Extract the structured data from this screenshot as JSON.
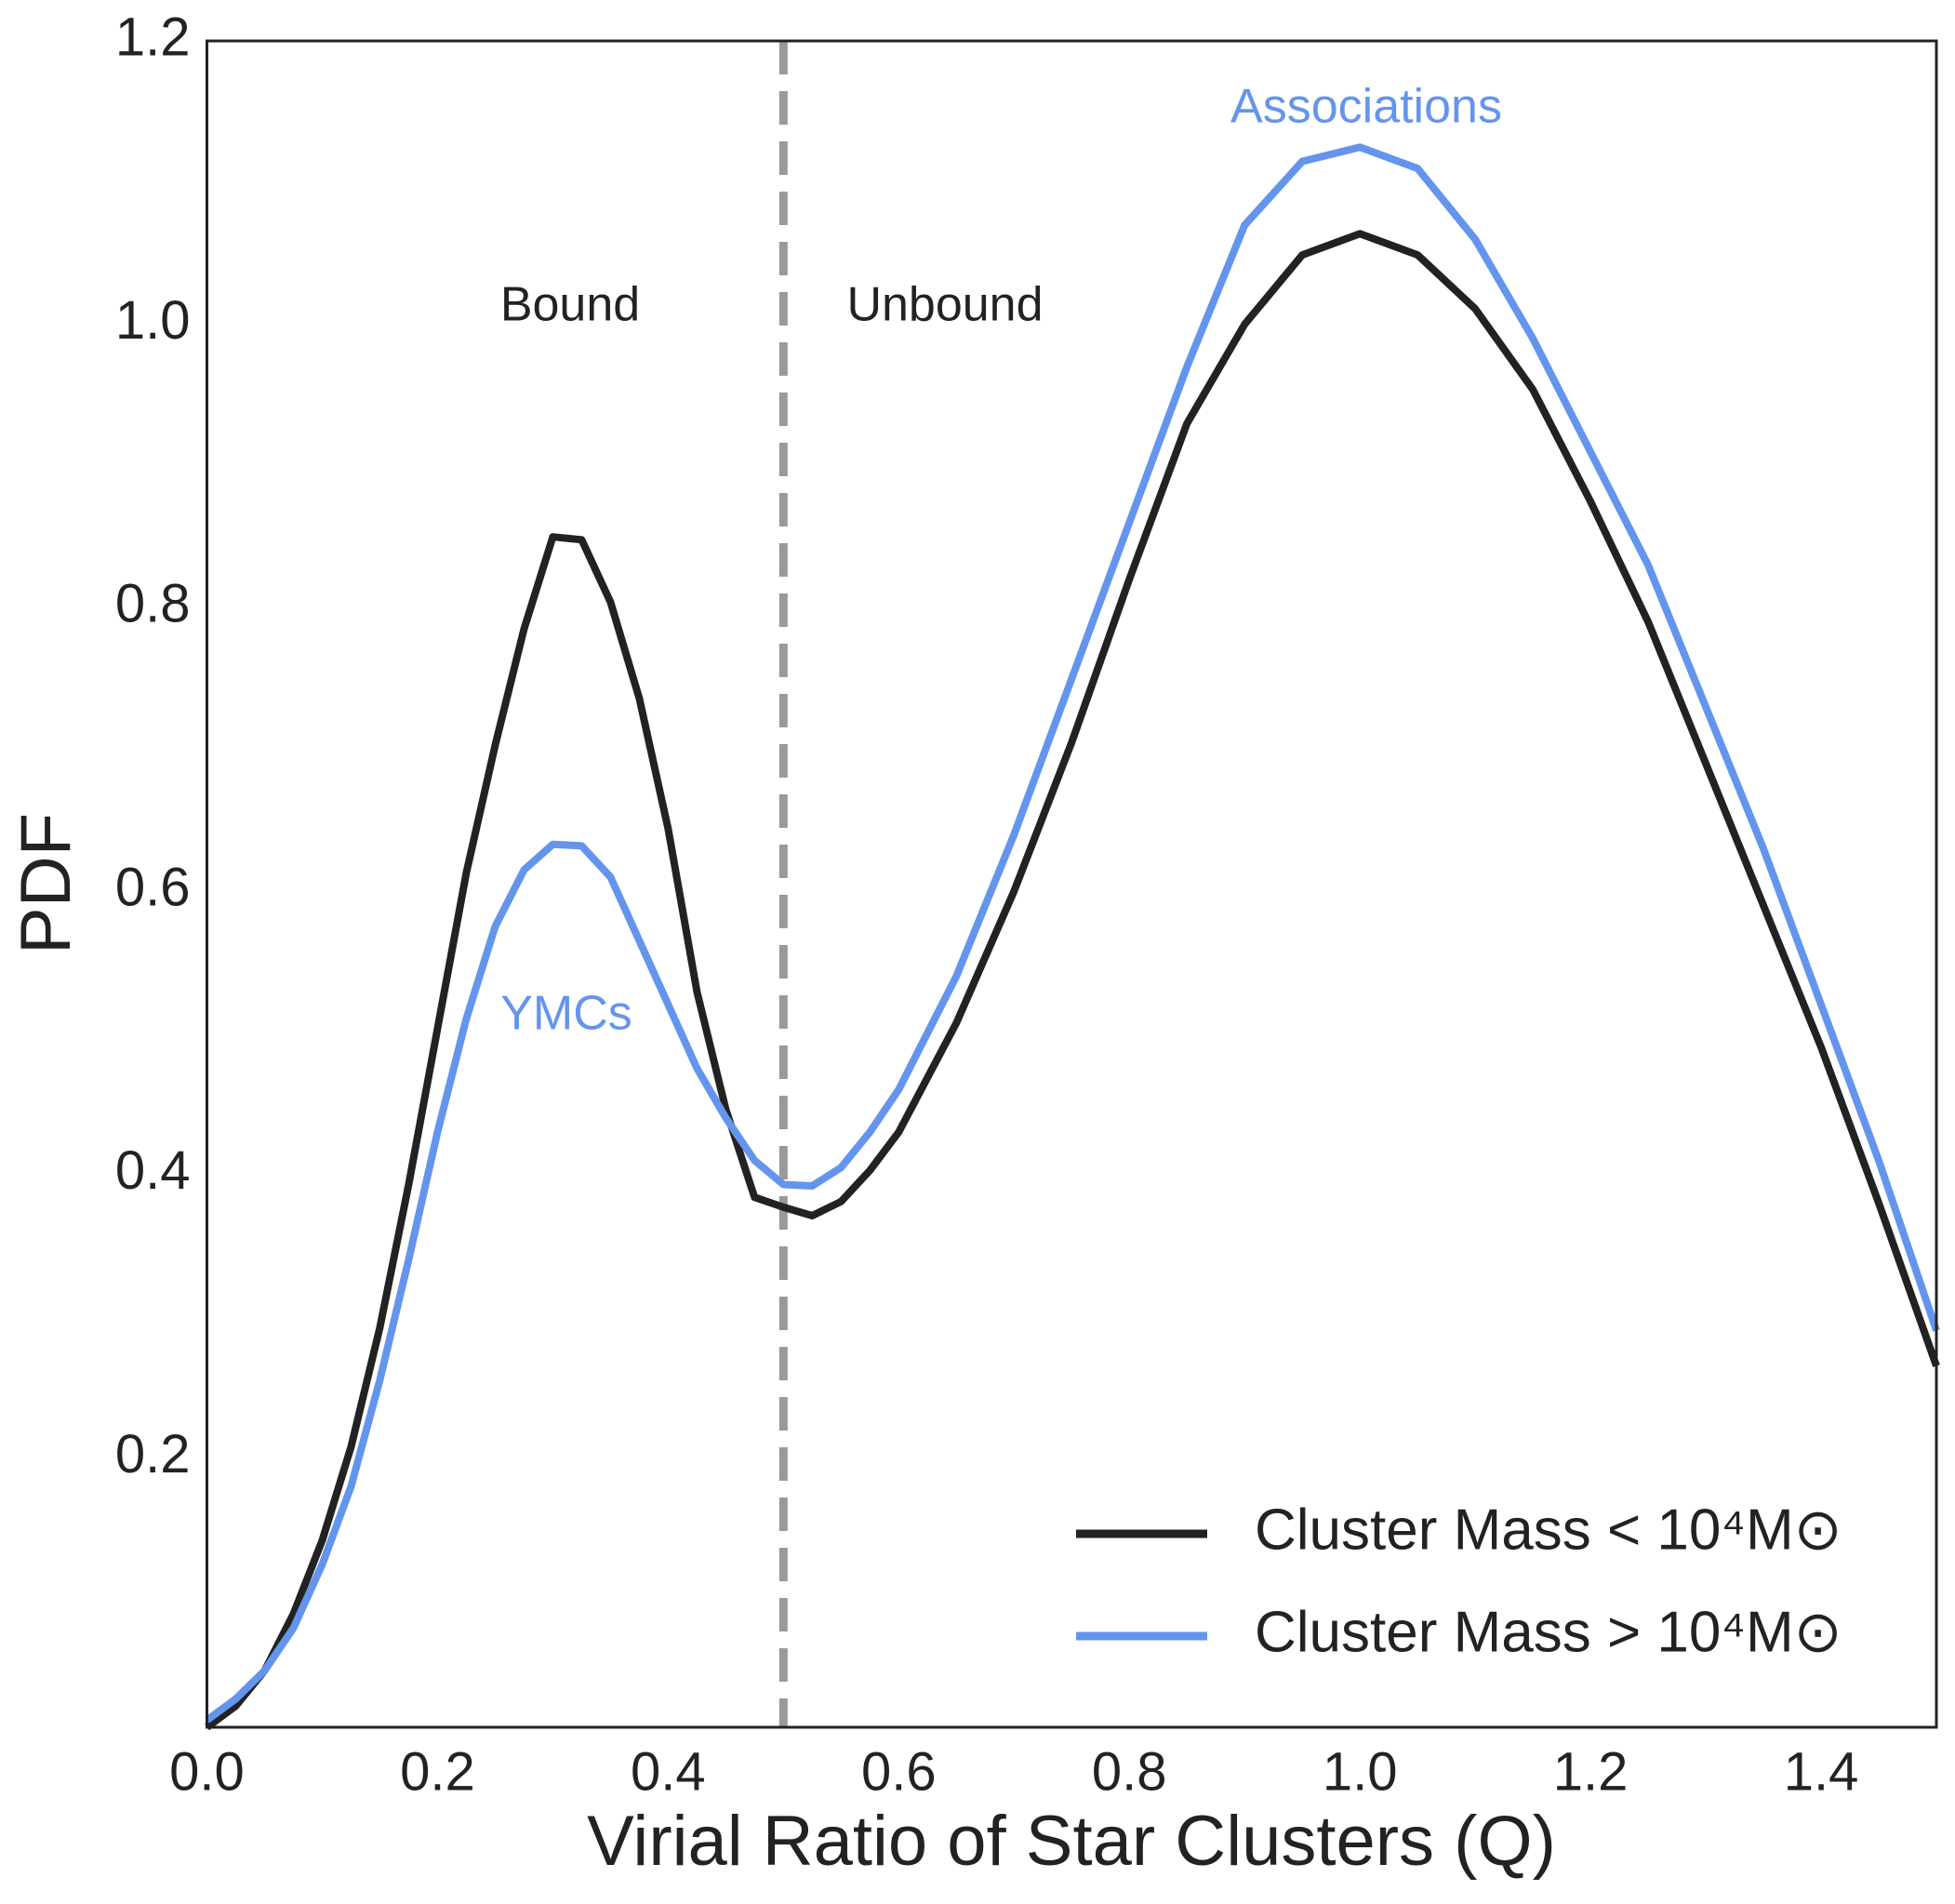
{
  "chart_data": {
    "type": "line",
    "xlabel": "Virial Ratio of Star Clusters (Q)",
    "ylabel": "PDF",
    "x": [
      0,
      0.025,
      0.05,
      0.075,
      0.1,
      0.125,
      0.15,
      0.175,
      0.2,
      0.225,
      0.25,
      0.275,
      0.3,
      0.325,
      0.35,
      0.375,
      0.4,
      0.425,
      0.45,
      0.475,
      0.5,
      0.525,
      0.55,
      0.575,
      0.6,
      0.65,
      0.7,
      0.75,
      0.8,
      0.85,
      0.9,
      0.95,
      1.0,
      1.05,
      1.1,
      1.15,
      1.2,
      1.25,
      1.3,
      1.35,
      1.4,
      1.45,
      1.5
    ],
    "series": [
      {
        "name": "Cluster Mass < 10⁴M⊙",
        "color": "#222222",
        "values": [
          0.01,
          0.025,
          0.05,
          0.09,
          0.142,
          0.208,
          0.292,
          0.393,
          0.503,
          0.613,
          0.703,
          0.785,
          0.85,
          0.848,
          0.804,
          0.736,
          0.644,
          0.529,
          0.446,
          0.384,
          0.377,
          0.371,
          0.381,
          0.403,
          0.43,
          0.507,
          0.6,
          0.705,
          0.82,
          0.93,
          1.0,
          1.049,
          1.064,
          1.049,
          1.011,
          0.954,
          0.875,
          0.79,
          0.69,
          0.59,
          0.49,
          0.38,
          0.265
        ]
      },
      {
        "name": "Cluster Mass > 10⁴M⊙",
        "color": "#6495ed",
        "values": [
          0.015,
          0.03,
          0.05,
          0.08,
          0.125,
          0.18,
          0.255,
          0.34,
          0.43,
          0.51,
          0.575,
          0.615,
          0.633,
          0.632,
          0.61,
          0.565,
          0.52,
          0.475,
          0.44,
          0.41,
          0.393,
          0.392,
          0.405,
          0.43,
          0.46,
          0.54,
          0.64,
          0.75,
          0.86,
          0.97,
          1.07,
          1.115,
          1.125,
          1.11,
          1.06,
          0.99,
          0.91,
          0.83,
          0.73,
          0.63,
          0.52,
          0.41,
          0.29
        ]
      }
    ],
    "vline": {
      "x": 0.5,
      "color": "#999999"
    },
    "annotations": [
      {
        "text": "Bound",
        "color": "#222222"
      },
      {
        "text": "Unbound",
        "color": "#222222"
      },
      {
        "text": "Associations",
        "color": "#6495ed"
      },
      {
        "text": "YMCs",
        "color": "#6495ed"
      }
    ],
    "xlim": [
      0,
      1.5
    ],
    "ylim": [
      0.01,
      1.2
    ],
    "xticks": [
      {
        "value": 0,
        "label": "0.0"
      },
      0.2,
      0.4,
      0.6,
      0.8,
      {
        "value": 1,
        "label": "1.0"
      },
      1.2,
      1.4
    ],
    "yticks": [
      0.2,
      0.4,
      0.6,
      0.8,
      {
        "value": 1,
        "label": "1.0"
      },
      1.2
    ],
    "legend": "lower right",
    "grid": false
  }
}
